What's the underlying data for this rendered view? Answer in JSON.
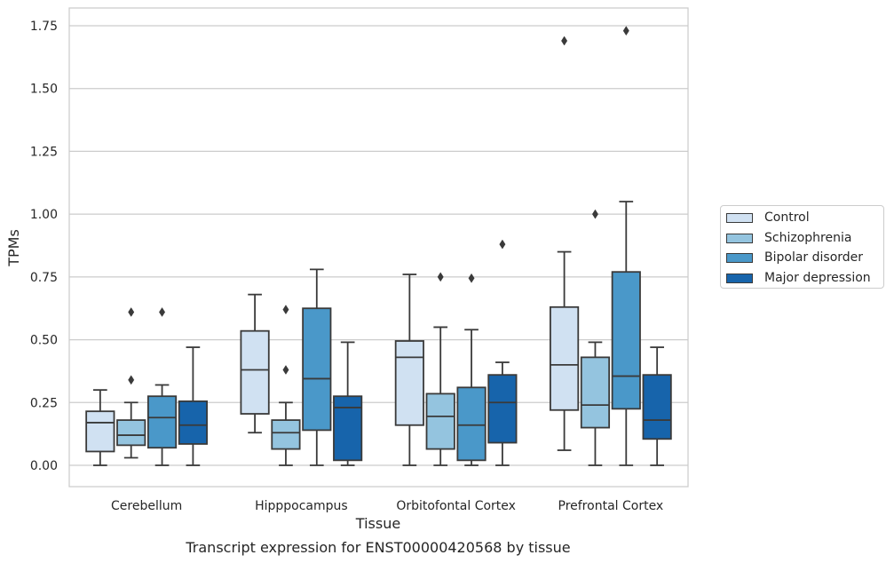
{
  "chart_data": {
    "type": "box",
    "title": "Transcript expression for ENST00000420568 by tissue",
    "xlabel": "Tissue",
    "ylabel": "TPMs",
    "ylim": [
      -0.08,
      1.82
    ],
    "yticks": [
      "0.00",
      "0.25",
      "0.50",
      "0.75",
      "1.00",
      "1.25",
      "1.50",
      "1.75"
    ],
    "grid": true,
    "legend_position": "right",
    "categories": [
      "Cerebellum",
      "Hipppocampus",
      "Orbitofontal Cortex",
      "Prefrontal Cortex"
    ],
    "series": [
      {
        "name": "Control",
        "color": "#d0e1f2",
        "boxes": [
          {
            "whisker_low": 0.0,
            "q1": 0.055,
            "median": 0.17,
            "q3": 0.215,
            "whisker_high": 0.3,
            "outliers": []
          },
          {
            "whisker_low": 0.13,
            "q1": 0.205,
            "median": 0.38,
            "q3": 0.535,
            "whisker_high": 0.68,
            "outliers": []
          },
          {
            "whisker_low": 0.0,
            "q1": 0.16,
            "median": 0.43,
            "q3": 0.495,
            "whisker_high": 0.76,
            "outliers": []
          },
          {
            "whisker_low": 0.06,
            "q1": 0.22,
            "median": 0.4,
            "q3": 0.63,
            "whisker_high": 0.85,
            "outliers": [
              1.69
            ]
          }
        ]
      },
      {
        "name": "Schizophrenia",
        "color": "#94c4df",
        "boxes": [
          {
            "whisker_low": 0.03,
            "q1": 0.08,
            "median": 0.12,
            "q3": 0.18,
            "whisker_high": 0.25,
            "outliers": [
              0.34,
              0.61
            ]
          },
          {
            "whisker_low": 0.0,
            "q1": 0.065,
            "median": 0.13,
            "q3": 0.18,
            "whisker_high": 0.25,
            "outliers": [
              0.38,
              0.62
            ]
          },
          {
            "whisker_low": 0.0,
            "q1": 0.065,
            "median": 0.195,
            "q3": 0.285,
            "whisker_high": 0.55,
            "outliers": [
              0.75
            ]
          },
          {
            "whisker_low": 0.0,
            "q1": 0.15,
            "median": 0.24,
            "q3": 0.43,
            "whisker_high": 0.49,
            "outliers": [
              1.0
            ]
          }
        ]
      },
      {
        "name": "Bipolar disorder",
        "color": "#4a98c9",
        "boxes": [
          {
            "whisker_low": 0.0,
            "q1": 0.07,
            "median": 0.19,
            "q3": 0.275,
            "whisker_high": 0.32,
            "outliers": [
              0.61
            ]
          },
          {
            "whisker_low": 0.0,
            "q1": 0.14,
            "median": 0.345,
            "q3": 0.625,
            "whisker_high": 0.78,
            "outliers": []
          },
          {
            "whisker_low": 0.0,
            "q1": 0.02,
            "median": 0.16,
            "q3": 0.31,
            "whisker_high": 0.54,
            "outliers": [
              0.745
            ]
          },
          {
            "whisker_low": 0.0,
            "q1": 0.225,
            "median": 0.355,
            "q3": 0.77,
            "whisker_high": 1.05,
            "outliers": [
              1.73
            ]
          }
        ]
      },
      {
        "name": "Major depression",
        "color": "#1764ab",
        "boxes": [
          {
            "whisker_low": 0.0,
            "q1": 0.085,
            "median": 0.16,
            "q3": 0.255,
            "whisker_high": 0.47,
            "outliers": []
          },
          {
            "whisker_low": 0.0,
            "q1": 0.02,
            "median": 0.23,
            "q3": 0.275,
            "whisker_high": 0.49,
            "outliers": []
          },
          {
            "whisker_low": 0.0,
            "q1": 0.09,
            "median": 0.25,
            "q3": 0.36,
            "whisker_high": 0.41,
            "outliers": [
              0.88
            ]
          },
          {
            "whisker_low": 0.0,
            "q1": 0.105,
            "median": 0.18,
            "q3": 0.36,
            "whisker_high": 0.47,
            "outliers": []
          }
        ]
      }
    ]
  }
}
